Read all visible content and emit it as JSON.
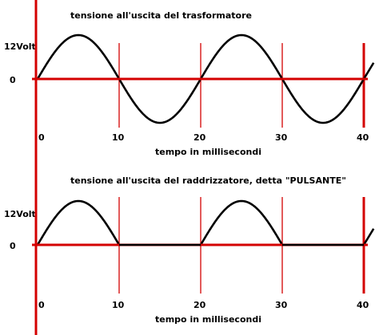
{
  "chart_data": [
    {
      "type": "line",
      "title": "tensione all'uscita del trasformatore",
      "xlabel": "tempo in millisecondi",
      "ylabel": "",
      "x_ticks": [
        "0",
        "10",
        "20",
        "30",
        "40"
      ],
      "y_ticks": [
        {
          "label": "12Volt",
          "value": 12
        },
        {
          "label": "0",
          "value": 0
        }
      ],
      "xlim": [
        0,
        40
      ],
      "ylim": [
        -12,
        12
      ],
      "waveform": "sine",
      "period_ms": 20,
      "amplitude": 12,
      "x": [
        0,
        2.5,
        5,
        7.5,
        10,
        12.5,
        15,
        17.5,
        20,
        22.5,
        25,
        27.5,
        30,
        32.5,
        35,
        37.5,
        40
      ],
      "y": [
        0,
        8.5,
        12,
        8.5,
        0,
        -8.5,
        -12,
        -8.5,
        0,
        8.5,
        12,
        8.5,
        0,
        -8.5,
        -12,
        -8.5,
        0
      ],
      "grid": false,
      "colors": {
        "axis": "#d40000",
        "curve": "#000000"
      }
    },
    {
      "type": "line",
      "title": "tensione all'uscita del raddrizzatore, detta \"PULSANTE\"",
      "xlabel": "tempo in millisecondi",
      "ylabel": "",
      "x_ticks": [
        "0",
        "10",
        "20",
        "30",
        "40"
      ],
      "y_ticks": [
        {
          "label": "12Volt",
          "value": 12
        },
        {
          "label": "0",
          "value": 0
        }
      ],
      "xlim": [
        0,
        40
      ],
      "ylim": [
        0,
        12
      ],
      "waveform": "half-wave rectified sine",
      "period_ms": 20,
      "amplitude": 12,
      "x": [
        0,
        2.5,
        5,
        7.5,
        10,
        15,
        20,
        22.5,
        25,
        27.5,
        30,
        35,
        40
      ],
      "y": [
        0,
        8.5,
        12,
        8.5,
        0,
        0,
        0,
        8.5,
        12,
        8.5,
        0,
        0,
        0
      ],
      "grid": false,
      "colors": {
        "axis": "#d40000",
        "curve": "#000000"
      }
    }
  ]
}
